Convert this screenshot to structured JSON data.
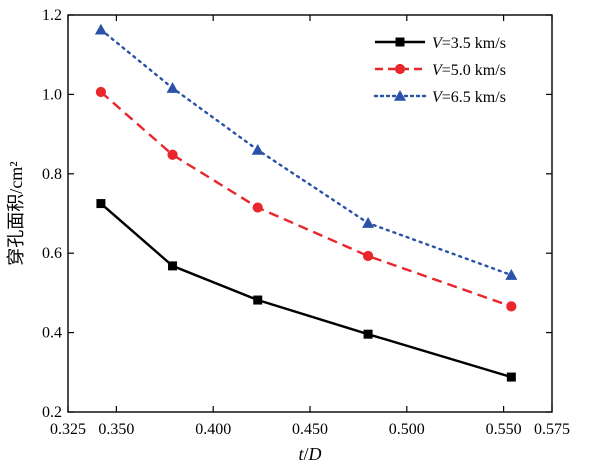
{
  "chart_data": {
    "type": "line",
    "title": "",
    "xlabel": "t/D",
    "ylabel": "穿孔面积/cm²",
    "xlim": [
      0.325,
      0.575
    ],
    "ylim": [
      0.2,
      1.2
    ],
    "xticks": [
      0.325,
      0.35,
      0.4,
      0.45,
      0.5,
      0.55,
      0.575
    ],
    "xtick_labels": [
      "0.325",
      "0.350",
      "0.400",
      "0.450",
      "0.500",
      "0.550",
      "0.575"
    ],
    "yticks": [
      0.2,
      0.4,
      0.6,
      0.8,
      1.0,
      1.2
    ],
    "ytick_labels": [
      "0.2",
      "0.4",
      "0.6",
      "0.8",
      "1.0",
      "1.2"
    ],
    "grid": false,
    "legend_position": "top-right",
    "x": [
      0.342,
      0.379,
      0.423,
      0.48,
      0.554
    ],
    "series": [
      {
        "name": "V=3.5 km/s",
        "name_var": "V",
        "name_rest": "=3.5 km/s",
        "color": "#000000",
        "marker": "square",
        "line_style": "solid",
        "values": [
          0.725,
          0.568,
          0.482,
          0.396,
          0.288
        ]
      },
      {
        "name": "V=5.0 km/s",
        "name_var": "V",
        "name_rest": "=5.0 km/s",
        "color": "#e8262c",
        "marker": "circle",
        "line_style": "dashed",
        "values": [
          1.006,
          0.848,
          0.715,
          0.593,
          0.466
        ]
      },
      {
        "name": "V=6.5 km/s",
        "name_var": "V",
        "name_rest": "=6.5 km/s",
        "color": "#2a52a8",
        "marker": "triangle",
        "line_style": "dotted",
        "values": [
          1.163,
          1.016,
          0.86,
          0.676,
          0.545
        ]
      }
    ]
  }
}
